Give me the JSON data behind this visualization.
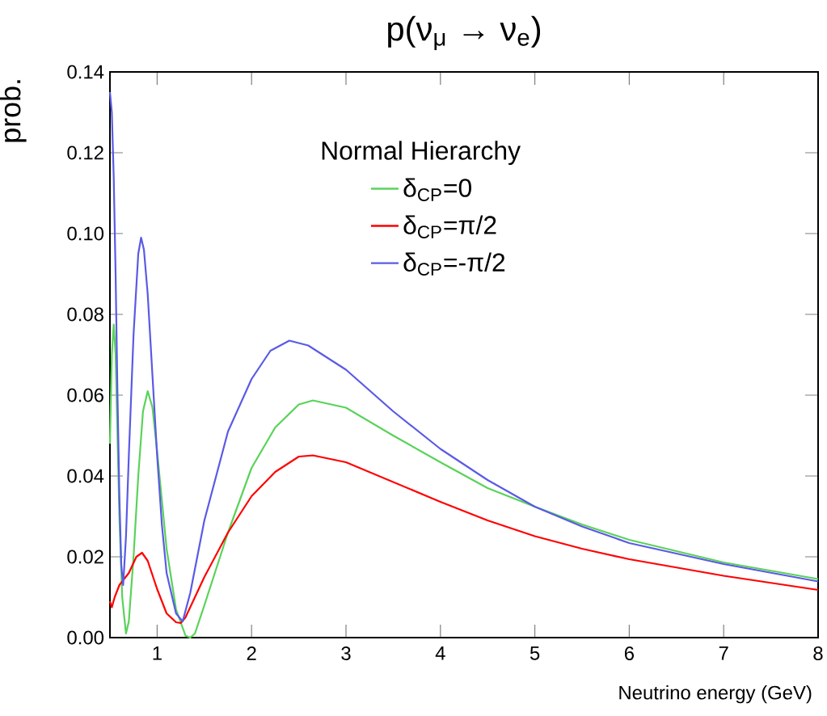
{
  "chart_data": {
    "type": "line",
    "title": "p(ν$_{μ}$ → ν$_{e}$)",
    "xlabel": "Neutrino energy (GeV)",
    "ylabel": "prob.",
    "legend_title": "Normal Hierarchy",
    "xlim": [
      0.5,
      8
    ],
    "xticks": [
      1,
      2,
      3,
      4,
      5,
      6,
      7,
      8
    ],
    "ylim": [
      0,
      0.14
    ],
    "yticks": [
      {
        "value": 0,
        "label": "0.00"
      },
      {
        "value": 0.02,
        "label": "0.02"
      },
      {
        "value": 0.04,
        "label": "0.04"
      },
      {
        "value": 0.06,
        "label": "0.06"
      },
      {
        "value": 0.08,
        "label": "0.08"
      },
      {
        "value": 0.1,
        "label": "0.10"
      },
      {
        "value": 0.12,
        "label": "0.12"
      },
      {
        "value": 0.14,
        "label": "0.14"
      }
    ],
    "grid": false,
    "legend": "top right",
    "marker": "none",
    "line_style": "solid",
    "series": [
      {
        "name": "δ$_{CP}$=0",
        "color": "#5ad25a",
        "x": [
          0.5,
          0.52,
          0.54,
          0.56,
          0.58,
          0.6,
          0.63,
          0.67,
          0.7,
          0.75,
          0.8,
          0.85,
          0.9,
          0.95,
          1.0,
          1.05,
          1.1,
          1.2,
          1.3,
          1.35,
          1.4,
          1.5,
          1.75,
          2,
          2.25,
          2.5,
          2.65,
          3,
          3.5,
          4,
          4.5,
          5,
          5.5,
          6,
          7,
          8
        ],
        "values": [
          0.048,
          0.07,
          0.0775,
          0.07,
          0.05,
          0.03,
          0.01,
          0.001,
          0.004,
          0.02,
          0.04,
          0.056,
          0.061,
          0.057,
          0.046,
          0.034,
          0.022,
          0.007,
          0.0005,
          0,
          0.001,
          0.008,
          0.026,
          0.042,
          0.052,
          0.0577,
          0.0587,
          0.0569,
          0.05,
          0.0434,
          0.037,
          0.0324,
          0.028,
          0.0242,
          0.0186,
          0.0145
        ]
      },
      {
        "name": "δ$_{CP}$=π/2",
        "color": "#ff0000",
        "x": [
          0.5,
          0.52,
          0.55,
          0.6,
          0.7,
          0.78,
          0.84,
          0.9,
          1.0,
          1.1,
          1.2,
          1.25,
          1.3,
          1.5,
          1.75,
          2,
          2.25,
          2.5,
          2.65,
          3,
          3.5,
          4,
          4.5,
          5,
          5.5,
          6,
          7,
          8
        ],
        "values": [
          0.009,
          0.0075,
          0.01,
          0.013,
          0.016,
          0.02,
          0.021,
          0.019,
          0.012,
          0.006,
          0.0038,
          0.0036,
          0.005,
          0.015,
          0.026,
          0.035,
          0.041,
          0.0448,
          0.0451,
          0.0434,
          0.0385,
          0.0336,
          0.029,
          0.0251,
          0.022,
          0.0194,
          0.0153,
          0.0118
        ]
      },
      {
        "name": "δ$_{CP}$=-π/2",
        "color": "#5a5ae6",
        "x": [
          0.5,
          0.52,
          0.54,
          0.56,
          0.58,
          0.6,
          0.62,
          0.64,
          0.67,
          0.7,
          0.75,
          0.8,
          0.83,
          0.86,
          0.9,
          0.95,
          1.0,
          1.05,
          1.1,
          1.2,
          1.27,
          1.35,
          1.5,
          1.75,
          2.0,
          2.2,
          2.4,
          2.6,
          3.0,
          3.5,
          4,
          4.5,
          5,
          5.5,
          6,
          7,
          8
        ],
        "values": [
          0.135,
          0.13,
          0.114,
          0.09,
          0.06,
          0.035,
          0.018,
          0.013,
          0.025,
          0.045,
          0.075,
          0.095,
          0.099,
          0.096,
          0.085,
          0.065,
          0.045,
          0.028,
          0.016,
          0.006,
          0.004,
          0.011,
          0.029,
          0.051,
          0.064,
          0.071,
          0.0735,
          0.0723,
          0.0663,
          0.056,
          0.0467,
          0.039,
          0.0324,
          0.0275,
          0.0234,
          0.0182,
          0.0139
        ]
      }
    ]
  }
}
